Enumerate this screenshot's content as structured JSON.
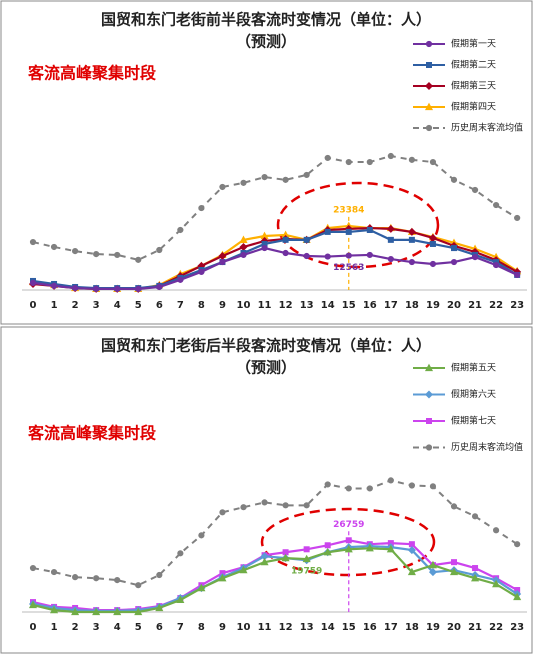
{
  "chart_data": [
    {
      "type": "line",
      "title": "国贸和东门老街前半段客流时变情况（单位：人）",
      "subtitle": "（预测）",
      "annotation": "客流高峰聚集时段",
      "categories": [
        "0",
        "1",
        "2",
        "3",
        "4",
        "5",
        "6",
        "7",
        "8",
        "9",
        "10",
        "11",
        "12",
        "13",
        "14",
        "15",
        "16",
        "17",
        "18",
        "19",
        "20",
        "21",
        "22",
        "23"
      ],
      "ylim": [
        0,
        50000
      ],
      "series": [
        {
          "name": "假期第一天",
          "color": "#7030a0",
          "marker": "circle",
          "values": [
            2600,
            1500,
            700,
            400,
            400,
            400,
            1100,
            3700,
            6600,
            10200,
            12800,
            15300,
            13500,
            12400,
            12200,
            12563,
            12800,
            11300,
            10200,
            9500,
            10200,
            12000,
            9100,
            5500
          ],
          "value_labels": [
            null,
            null,
            null,
            null,
            null,
            null,
            null,
            null,
            null,
            null,
            null,
            null,
            null,
            null,
            null,
            "12563",
            null,
            null,
            null,
            null,
            null,
            null,
            null,
            null
          ]
        },
        {
          "name": "假期第二天",
          "color": "#2e5fa3",
          "marker": "square",
          "values": [
            3300,
            2200,
            1100,
            700,
            700,
            700,
            1500,
            4400,
            7300,
            10200,
            13500,
            16800,
            18300,
            18300,
            21200,
            21200,
            21900,
            18300,
            18300,
            16800,
            15300,
            12800,
            10200,
            5500
          ]
        },
        {
          "name": "假期第三天",
          "color": "#a50021",
          "marker": "diamond",
          "values": [
            2200,
            1500,
            700,
            400,
            400,
            400,
            1500,
            5100,
            8800,
            12400,
            15700,
            17900,
            18600,
            18300,
            21900,
            22300,
            22600,
            22300,
            21200,
            19000,
            16100,
            13900,
            10900,
            6600
          ]
        },
        {
          "name": "假期第四天",
          "color": "#ffb000",
          "marker": "triangle",
          "values": [
            2900,
            1800,
            700,
            400,
            400,
            400,
            1800,
            5800,
            8800,
            12800,
            18300,
            19700,
            20100,
            18300,
            22600,
            23384,
            22600,
            22600,
            21200,
            19300,
            17200,
            15000,
            12000,
            6900
          ],
          "value_labels": [
            null,
            null,
            null,
            null,
            null,
            null,
            null,
            null,
            null,
            null,
            null,
            null,
            null,
            null,
            null,
            "23384",
            null,
            null,
            null,
            null,
            null,
            null,
            null,
            null
          ]
        },
        {
          "name": "历史周末客流均值",
          "color": "#808080",
          "marker": "circle",
          "dashed": true,
          "values": [
            17500,
            15700,
            14200,
            13100,
            12800,
            11000,
            14600,
            21900,
            29900,
            37600,
            39100,
            41200,
            40200,
            42000,
            48200,
            46700,
            46700,
            48900,
            47500,
            46700,
            40200,
            36500,
            31000,
            26300
          ]
        }
      ]
    },
    {
      "type": "line",
      "title": "国贸和东门老街后半段客流时变情况（单位：人）",
      "subtitle": "（预测）",
      "annotation": "客流高峰聚集时段",
      "categories": [
        "0",
        "1",
        "2",
        "3",
        "4",
        "5",
        "6",
        "7",
        "8",
        "9",
        "10",
        "11",
        "12",
        "13",
        "14",
        "15",
        "16",
        "17",
        "18",
        "19",
        "20",
        "21",
        "22",
        "23"
      ],
      "ylim": [
        0,
        50000
      ],
      "series": [
        {
          "name": "假期第五天",
          "color": "#70ad47",
          "marker": "triangle",
          "values": [
            2600,
            700,
            0,
            0,
            0,
            0,
            1500,
            4500,
            8900,
            12600,
            15600,
            18600,
            20100,
            19759,
            22300,
            23400,
            23800,
            23400,
            14900,
            17500,
            14900,
            12600,
            10400,
            5600
          ],
          "value_labels": [
            null,
            null,
            null,
            null,
            null,
            null,
            null,
            null,
            null,
            null,
            null,
            null,
            null,
            "19759",
            null,
            null,
            null,
            null,
            null,
            null,
            null,
            null,
            null,
            null
          ]
        },
        {
          "name": "假期第六天",
          "color": "#5b9bd5",
          "marker": "diamond",
          "values": [
            3000,
            1500,
            700,
            400,
            400,
            700,
            1900,
            5200,
            8900,
            13000,
            16400,
            20800,
            20100,
            19300,
            22300,
            24200,
            24600,
            24200,
            23100,
            14900,
            15600,
            13800,
            11900,
            6700
          ]
        },
        {
          "name": "假期第七天",
          "color": "#cc44ee",
          "marker": "square",
          "values": [
            3700,
            1900,
            1500,
            700,
            700,
            1100,
            2200,
            5200,
            10000,
            14500,
            16700,
            21200,
            22300,
            23400,
            24900,
            26759,
            25300,
            25700,
            25300,
            17500,
            18600,
            16400,
            12600,
            8200
          ],
          "value_labels": [
            null,
            null,
            null,
            null,
            null,
            null,
            null,
            null,
            null,
            null,
            null,
            null,
            null,
            null,
            null,
            "26759",
            null,
            null,
            null,
            null,
            null,
            null,
            null,
            null
          ]
        },
        {
          "name": "历史周末客流均值",
          "color": "#808080",
          "marker": "circle",
          "dashed": true,
          "values": [
            16400,
            14900,
            13000,
            12600,
            11900,
            10000,
            13800,
            21900,
            28600,
            37200,
            39100,
            40900,
            39800,
            39800,
            47600,
            46100,
            46100,
            49100,
            47200,
            46900,
            39400,
            35700,
            30500,
            25300
          ]
        }
      ]
    }
  ]
}
